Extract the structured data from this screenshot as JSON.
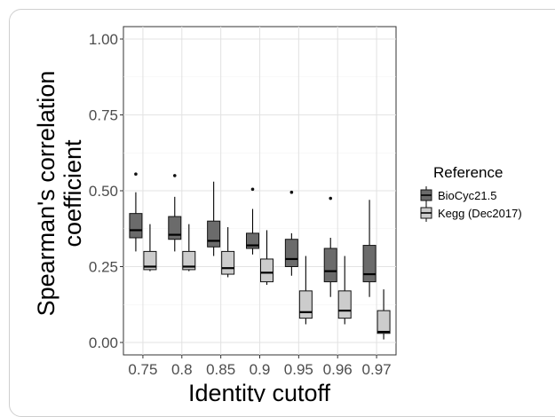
{
  "chart_data": {
    "type": "boxplot",
    "xlabel": "Identity cutoff",
    "ylabel_line1": "Spearman's correlation",
    "ylabel_line2": "coefficient",
    "ylim": [
      0,
      1
    ],
    "y_ticks": [
      "0.00",
      "0.25",
      "0.50",
      "0.75",
      "1.00"
    ],
    "y_tick_values": [
      0,
      0.25,
      0.5,
      0.75,
      1.0
    ],
    "categories": [
      "0.75",
      "0.8",
      "0.85",
      "0.9",
      "0.95",
      "0.96",
      "0.97"
    ],
    "grid": true,
    "legend": {
      "title": "Reference",
      "placement": "right"
    },
    "series": [
      {
        "name": "BioCyc21.5",
        "color": "#6b6b6b",
        "boxes": [
          {
            "min": 0.3,
            "q1": 0.345,
            "median": 0.37,
            "q3": 0.425,
            "max": 0.495,
            "outliers": [
              0.555
            ]
          },
          {
            "min": 0.3,
            "q1": 0.34,
            "median": 0.355,
            "q3": 0.415,
            "max": 0.48,
            "outliers": [
              0.55
            ]
          },
          {
            "min": 0.285,
            "q1": 0.315,
            "median": 0.335,
            "q3": 0.4,
            "max": 0.53,
            "outliers": []
          },
          {
            "min": 0.29,
            "q1": 0.31,
            "median": 0.32,
            "q3": 0.36,
            "max": 0.44,
            "outliers": [
              0.505
            ]
          },
          {
            "min": 0.22,
            "q1": 0.25,
            "median": 0.275,
            "q3": 0.34,
            "max": 0.36,
            "outliers": [
              0.495
            ]
          },
          {
            "min": 0.15,
            "q1": 0.2,
            "median": 0.235,
            "q3": 0.31,
            "max": 0.345,
            "outliers": [
              0.475
            ]
          },
          {
            "min": 0.15,
            "q1": 0.2,
            "median": 0.225,
            "q3": 0.32,
            "max": 0.47,
            "outliers": []
          }
        ]
      },
      {
        "name": "Kegg (Dec2017)",
        "color": "#cccccc",
        "boxes": [
          {
            "min": 0.235,
            "q1": 0.24,
            "median": 0.25,
            "q3": 0.3,
            "max": 0.39,
            "outliers": []
          },
          {
            "min": 0.235,
            "q1": 0.24,
            "median": 0.25,
            "q3": 0.3,
            "max": 0.39,
            "outliers": []
          },
          {
            "min": 0.215,
            "q1": 0.225,
            "median": 0.245,
            "q3": 0.3,
            "max": 0.38,
            "outliers": []
          },
          {
            "min": 0.19,
            "q1": 0.2,
            "median": 0.23,
            "q3": 0.275,
            "max": 0.37,
            "outliers": []
          },
          {
            "min": 0.06,
            "q1": 0.08,
            "median": 0.1,
            "q3": 0.17,
            "max": 0.285,
            "outliers": []
          },
          {
            "min": 0.06,
            "q1": 0.08,
            "median": 0.105,
            "q3": 0.17,
            "max": 0.285,
            "outliers": []
          },
          {
            "min": 0.01,
            "q1": 0.03,
            "median": 0.035,
            "q3": 0.105,
            "max": 0.175,
            "outliers": []
          }
        ]
      }
    ]
  }
}
